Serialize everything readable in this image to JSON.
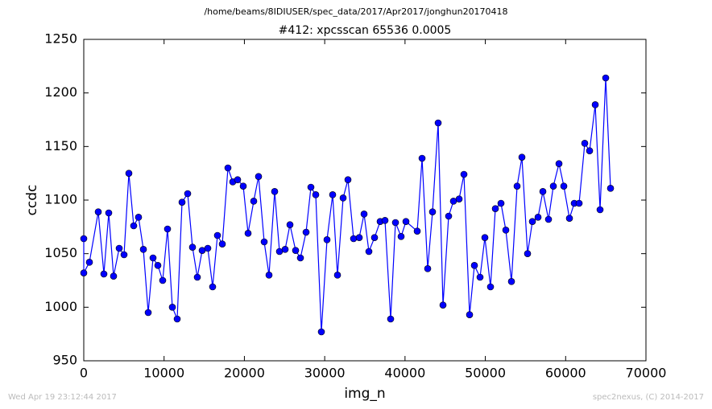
{
  "chart_data": {
    "type": "line",
    "header": "/home/beams/8IDIUSER/spec_data/2017/Apr2017/jonghun20170418",
    "title": "#412: xpcsscan 65536 0.0005",
    "xlabel": "img_n",
    "ylabel": "ccdc",
    "footer_left": "Wed Apr 19 23:12:44 2017",
    "footer_right": "spec2nexus, (C) 2014-2017",
    "color": "#0000ff",
    "marker_edge": "#000000",
    "xlim": [
      0,
      70000
    ],
    "xticks": [
      0,
      10000,
      20000,
      30000,
      40000,
      50000,
      60000,
      70000
    ],
    "ylim": [
      950,
      1250
    ],
    "yticks": [
      950,
      1000,
      1050,
      1100,
      1150,
      1200,
      1250
    ],
    "x": [
      0,
      0,
      702,
      1805,
      2507,
      3109,
      3711,
      4413,
      5015,
      5616,
      6218,
      6820,
      7422,
      8023,
      8625,
      9227,
      9828,
      10430,
      11032,
      11634,
      12236,
      12938,
      13539,
      14141,
      14743,
      15445,
      16046,
      16648,
      17250,
      17952,
      18553,
      19155,
      19857,
      20459,
      21161,
      21763,
      22465,
      23067,
      23769,
      24371,
      25073,
      25675,
      26377,
      26978,
      27680,
      28282,
      28883,
      29585,
      30287,
      30989,
      31591,
      32293,
      32895,
      33597,
      34299,
      34901,
      35502,
      36204,
      36906,
      37508,
      38210,
      38812,
      39514,
      40116,
      41520,
      42122,
      42824,
      43425,
      44127,
      44729,
      45431,
      46033,
      46735,
      47337,
      48039,
      48640,
      49342,
      49944,
      50646,
      51248,
      51950,
      52551,
      53253,
      53955,
      54557,
      55259,
      55861,
      56563,
      57165,
      57867,
      58469,
      59171,
      59772,
      60474,
      61076,
      61678,
      62380,
      62982,
      63684,
      64286,
      64988,
      65590
    ],
    "values": [
      1064,
      1032,
      1042,
      1089,
      1031,
      1088,
      1029,
      1055,
      1049,
      1125,
      1076,
      1084,
      1054,
      995,
      1046,
      1039,
      1025,
      1073,
      1000,
      989,
      1098,
      1106,
      1056,
      1028,
      1053,
      1055,
      1019,
      1067,
      1059,
      1130,
      1117,
      1119,
      1113,
      1069,
      1099,
      1122,
      1061,
      1030,
      1108,
      1052,
      1054,
      1077,
      1053,
      1046,
      1070,
      1112,
      1105,
      977,
      1063,
      1105,
      1030,
      1102,
      1119,
      1064,
      1065,
      1087,
      1052,
      1065,
      1080,
      1081,
      989,
      1079,
      1066,
      1080,
      1071,
      1139,
      1036,
      1089,
      1172,
      1002,
      1085,
      1099,
      1101,
      1124,
      993,
      1039,
      1028,
      1065,
      1019,
      1092,
      1097,
      1072,
      1024,
      1113,
      1140,
      1050,
      1080,
      1084,
      1108,
      1082,
      1113,
      1134,
      1113,
      1083,
      1097,
      1097,
      1153,
      1146,
      1189,
      1091,
      1214,
      1111
    ]
  }
}
